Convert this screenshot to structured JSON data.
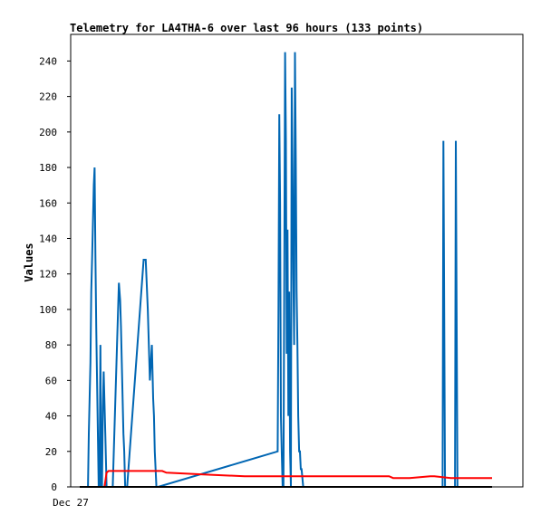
{
  "chart_data": {
    "type": "line",
    "title": "Telemetry for LA4THA-6 over last 96 hours (133 points)",
    "xlabel": "",
    "ylabel": "Values",
    "x_tick_labels": [
      "Dec 27"
    ],
    "y_ticks": [
      0,
      20,
      40,
      60,
      80,
      100,
      120,
      140,
      160,
      180,
      200,
      220,
      240
    ],
    "xlim": [
      0,
      1
    ],
    "ylim": [
      0,
      255
    ],
    "grid": false,
    "legend": "none",
    "series": [
      {
        "color": "#0066b3",
        "x": [
          0.0,
          0.02,
          0.022,
          0.024,
          0.026,
          0.028,
          0.03,
          0.032,
          0.034,
          0.036,
          0.038,
          0.04,
          0.042,
          0.044,
          0.046,
          0.048,
          0.05,
          0.052,
          0.054,
          0.056,
          0.058,
          0.062,
          0.065,
          0.067,
          0.07,
          0.072,
          0.075,
          0.08,
          0.095,
          0.098,
          0.1,
          0.102,
          0.104,
          0.106,
          0.108,
          0.11,
          0.115,
          0.155,
          0.158,
          0.16,
          0.165,
          0.17,
          0.175,
          0.178,
          0.18,
          0.182,
          0.184,
          0.186,
          0.19,
          0.48,
          0.482,
          0.484,
          0.486,
          0.488,
          0.49,
          0.492,
          0.494,
          0.496,
          0.498,
          0.5,
          0.502,
          0.504,
          0.506,
          0.508,
          0.51,
          0.512,
          0.514,
          0.516,
          0.518,
          0.52,
          0.522,
          0.524,
          0.526,
          0.528,
          0.53,
          0.532,
          0.534,
          0.536,
          0.538,
          0.54,
          0.542,
          0.544,
          0.546,
          0.548,
          0.55,
          0.552,
          0.554,
          0.556,
          0.558,
          0.56,
          0.6,
          0.88,
          0.882,
          0.884,
          0.886,
          0.9,
          0.91,
          0.912,
          0.914,
          0.916,
          0.93,
          1.0
        ],
        "y": [
          0,
          0,
          30,
          50,
          70,
          110,
          130,
          150,
          170,
          180,
          130,
          90,
          60,
          30,
          0,
          0,
          80,
          0,
          0,
          45,
          65,
          30,
          0,
          0,
          0,
          0,
          0,
          0,
          115,
          105,
          90,
          70,
          50,
          30,
          20,
          0,
          0,
          128,
          128,
          128,
          100,
          60,
          80,
          50,
          40,
          20,
          10,
          0,
          0,
          20,
          100,
          210,
          160,
          40,
          20,
          0,
          0,
          120,
          245,
          195,
          75,
          145,
          40,
          110,
          20,
          0,
          225,
          180,
          120,
          80,
          245,
          185,
          110,
          80,
          40,
          20,
          20,
          10,
          10,
          5,
          0,
          0,
          0,
          0,
          0,
          0,
          0,
          0,
          0,
          0,
          0,
          0,
          195,
          98,
          0,
          0,
          0,
          195,
          98,
          0,
          0,
          0
        ]
      },
      {
        "color": "#ff0000",
        "x": [
          0.0,
          0.06,
          0.065,
          0.07,
          0.2,
          0.21,
          0.3,
          0.4,
          0.5,
          0.6,
          0.7,
          0.75,
          0.76,
          0.8,
          0.85,
          0.86,
          0.9,
          0.92,
          1.0
        ],
        "y": [
          0,
          0,
          8,
          9,
          9,
          8,
          7,
          6,
          6,
          6,
          6,
          6,
          5,
          5,
          6,
          6,
          5,
          5,
          5
        ]
      },
      {
        "color": "#000000",
        "x": [
          0.0,
          1.0
        ],
        "y": [
          0,
          0
        ]
      }
    ]
  }
}
